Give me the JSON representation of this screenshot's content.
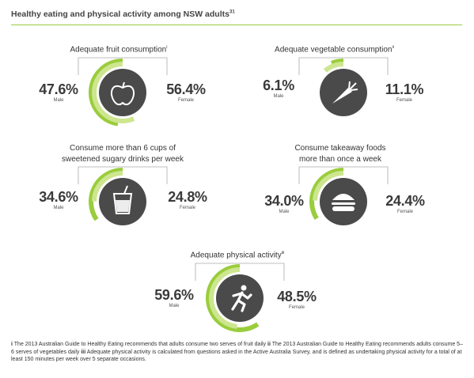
{
  "title": "Healthy eating and physical activity among NSW adults",
  "title_ref": "31",
  "colors": {
    "accent": "#9acd3c",
    "circle": "#4a4a4a",
    "line": "#aaaaaa"
  },
  "panels": [
    {
      "title": "Adequate fruit consumption",
      "ref": "i",
      "male": "47.6%",
      "female": "56.4%",
      "male_label": "Male",
      "female_label": "Female",
      "icon": "apple-icon"
    },
    {
      "title": "Adequate vegetable consumption",
      "ref": "ii",
      "male": "6.1%",
      "female": "11.1%",
      "male_label": "Male",
      "female_label": "Female",
      "icon": "carrot-icon"
    },
    {
      "title_line1": "Consume more than 6 cups of",
      "title_line2": "sweetened sugary drinks per week",
      "male": "34.6%",
      "female": "24.8%",
      "male_label": "Male",
      "female_label": "Female",
      "icon": "drink-glass-icon"
    },
    {
      "title_line1": "Consume takeaway foods",
      "title_line2": "more than once a week",
      "male": "34.0%",
      "female": "24.4%",
      "male_label": "Male",
      "female_label": "Female",
      "icon": "burger-icon"
    },
    {
      "title": "Adequate physical activity",
      "ref": "iii",
      "male": "59.6%",
      "female": "48.5%",
      "male_label": "Male",
      "female_label": "Female",
      "icon": "running-person-icon"
    }
  ],
  "footnote": {
    "n1": "i",
    "t1": " The 2013 Australian Guide to Healthy Eating recommends that adults consume two serves of fruit daily ",
    "n2": "ii",
    "t2": " The 2013 Australian Guide to Healthy Eating recommends adults consume 5–6 serves of vegetables daily ",
    "n3": "iii",
    "t3": " Adequate physical activity is calculated from questions asked in the Active Australia Survey, and is defined as undertaking physical activity for a total of at least 150 minutes per week over 5 separate occasions."
  }
}
